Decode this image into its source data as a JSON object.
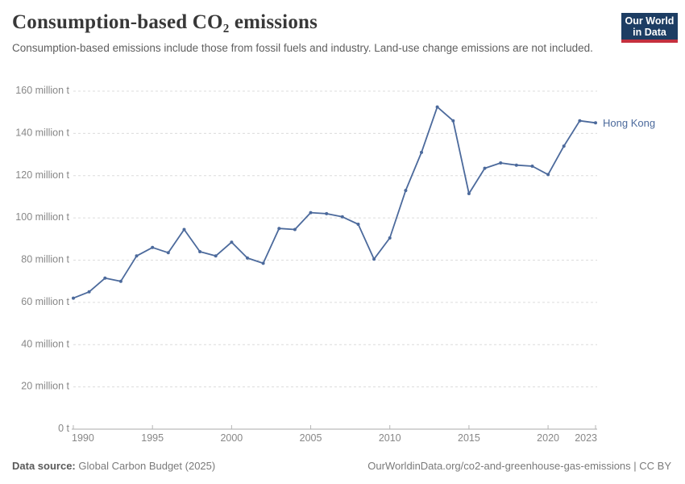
{
  "header": {
    "title": "Consumption-based CO₂ emissions",
    "subtitle": "Consumption-based emissions include those from fossil fuels and industry. Land-use change emissions are not included.",
    "logo": {
      "line1": "Our World",
      "line2": "in Data",
      "bg_color": "#1d3d63",
      "accent_color": "#c5303e"
    }
  },
  "chart_data": {
    "type": "line",
    "title": "Consumption-based CO₂ emissions",
    "xlabel": "",
    "ylabel": "",
    "xlim": [
      1990,
      2023
    ],
    "ylim": [
      0,
      160
    ],
    "grid": "horizontal-dashed",
    "legend_position": "end-of-line",
    "x": [
      1990,
      1991,
      1992,
      1993,
      1994,
      1995,
      1996,
      1997,
      1998,
      1999,
      2000,
      2001,
      2002,
      2003,
      2004,
      2005,
      2006,
      2007,
      2008,
      2009,
      2010,
      2011,
      2012,
      2013,
      2014,
      2015,
      2016,
      2017,
      2018,
      2019,
      2020,
      2021,
      2022,
      2023
    ],
    "series": [
      {
        "name": "Hong Kong",
        "color": "#4c6a9c",
        "values": [
          62,
          65,
          71.5,
          70,
          82,
          86,
          83.5,
          94.5,
          84,
          82,
          88.5,
          81,
          78.5,
          95,
          94.5,
          102.5,
          102,
          100.5,
          97,
          80.5,
          90.5,
          113,
          131,
          152.5,
          146,
          111.5,
          123.5,
          126,
          125,
          124.5,
          120.5,
          134,
          146,
          145
        ]
      }
    ],
    "end_label": "Hong Kong",
    "x_ticks": [
      1990,
      1995,
      2000,
      2005,
      2010,
      2015,
      2020,
      2023
    ],
    "y_ticks": [
      {
        "value": 0,
        "label": "0 t"
      },
      {
        "value": 20,
        "label": "20 million t"
      },
      {
        "value": 40,
        "label": "40 million t"
      },
      {
        "value": 60,
        "label": "60 million t"
      },
      {
        "value": 80,
        "label": "80 million t"
      },
      {
        "value": 100,
        "label": "100 million t"
      },
      {
        "value": 120,
        "label": "120 million t"
      },
      {
        "value": 140,
        "label": "140 million t"
      },
      {
        "value": 160,
        "label": "160 million t"
      }
    ]
  },
  "colors": {
    "line": "#4c6a9c",
    "grid": "#dcdcdc",
    "axis": "#a8a8a8",
    "tick": "#b5b5b5",
    "tick_label": "#878787"
  },
  "footer": {
    "source_label": "Data source:",
    "source_text": "Global Carbon Budget (2025)",
    "license_text": "OurWorldinData.org/co2-and-greenhouse-gas-emissions | CC BY"
  }
}
